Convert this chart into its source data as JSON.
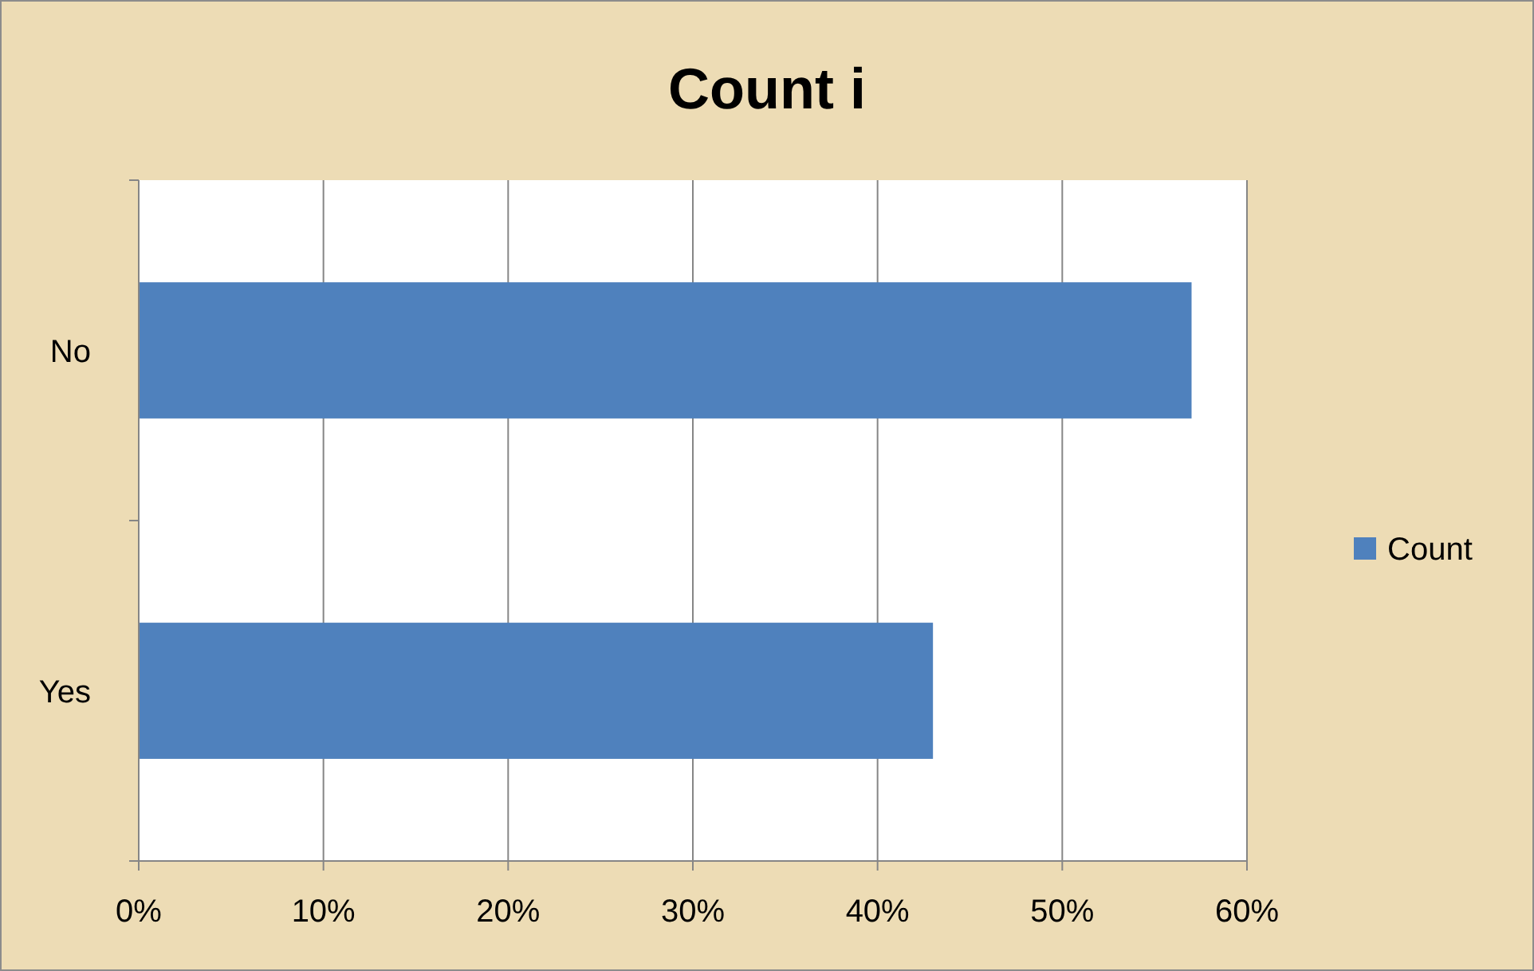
{
  "chart_data": {
    "type": "bar",
    "title": "Count i",
    "orientation": "horizontal",
    "categories": [
      "No",
      "Yes"
    ],
    "series": [
      {
        "name": "Count",
        "color": "#4f81bd",
        "values": [
          57,
          43
        ]
      }
    ],
    "xlim": [
      0,
      60
    ],
    "xticks": [
      {
        "value": 0,
        "label": "0%"
      },
      {
        "value": 10,
        "label": "10%"
      },
      {
        "value": 20,
        "label": "20%"
      },
      {
        "value": 30,
        "label": "30%"
      },
      {
        "value": 40,
        "label": "40%"
      },
      {
        "value": 50,
        "label": "50%"
      },
      {
        "value": 60,
        "label": "60%"
      }
    ],
    "grid": "x",
    "legend": "right"
  }
}
